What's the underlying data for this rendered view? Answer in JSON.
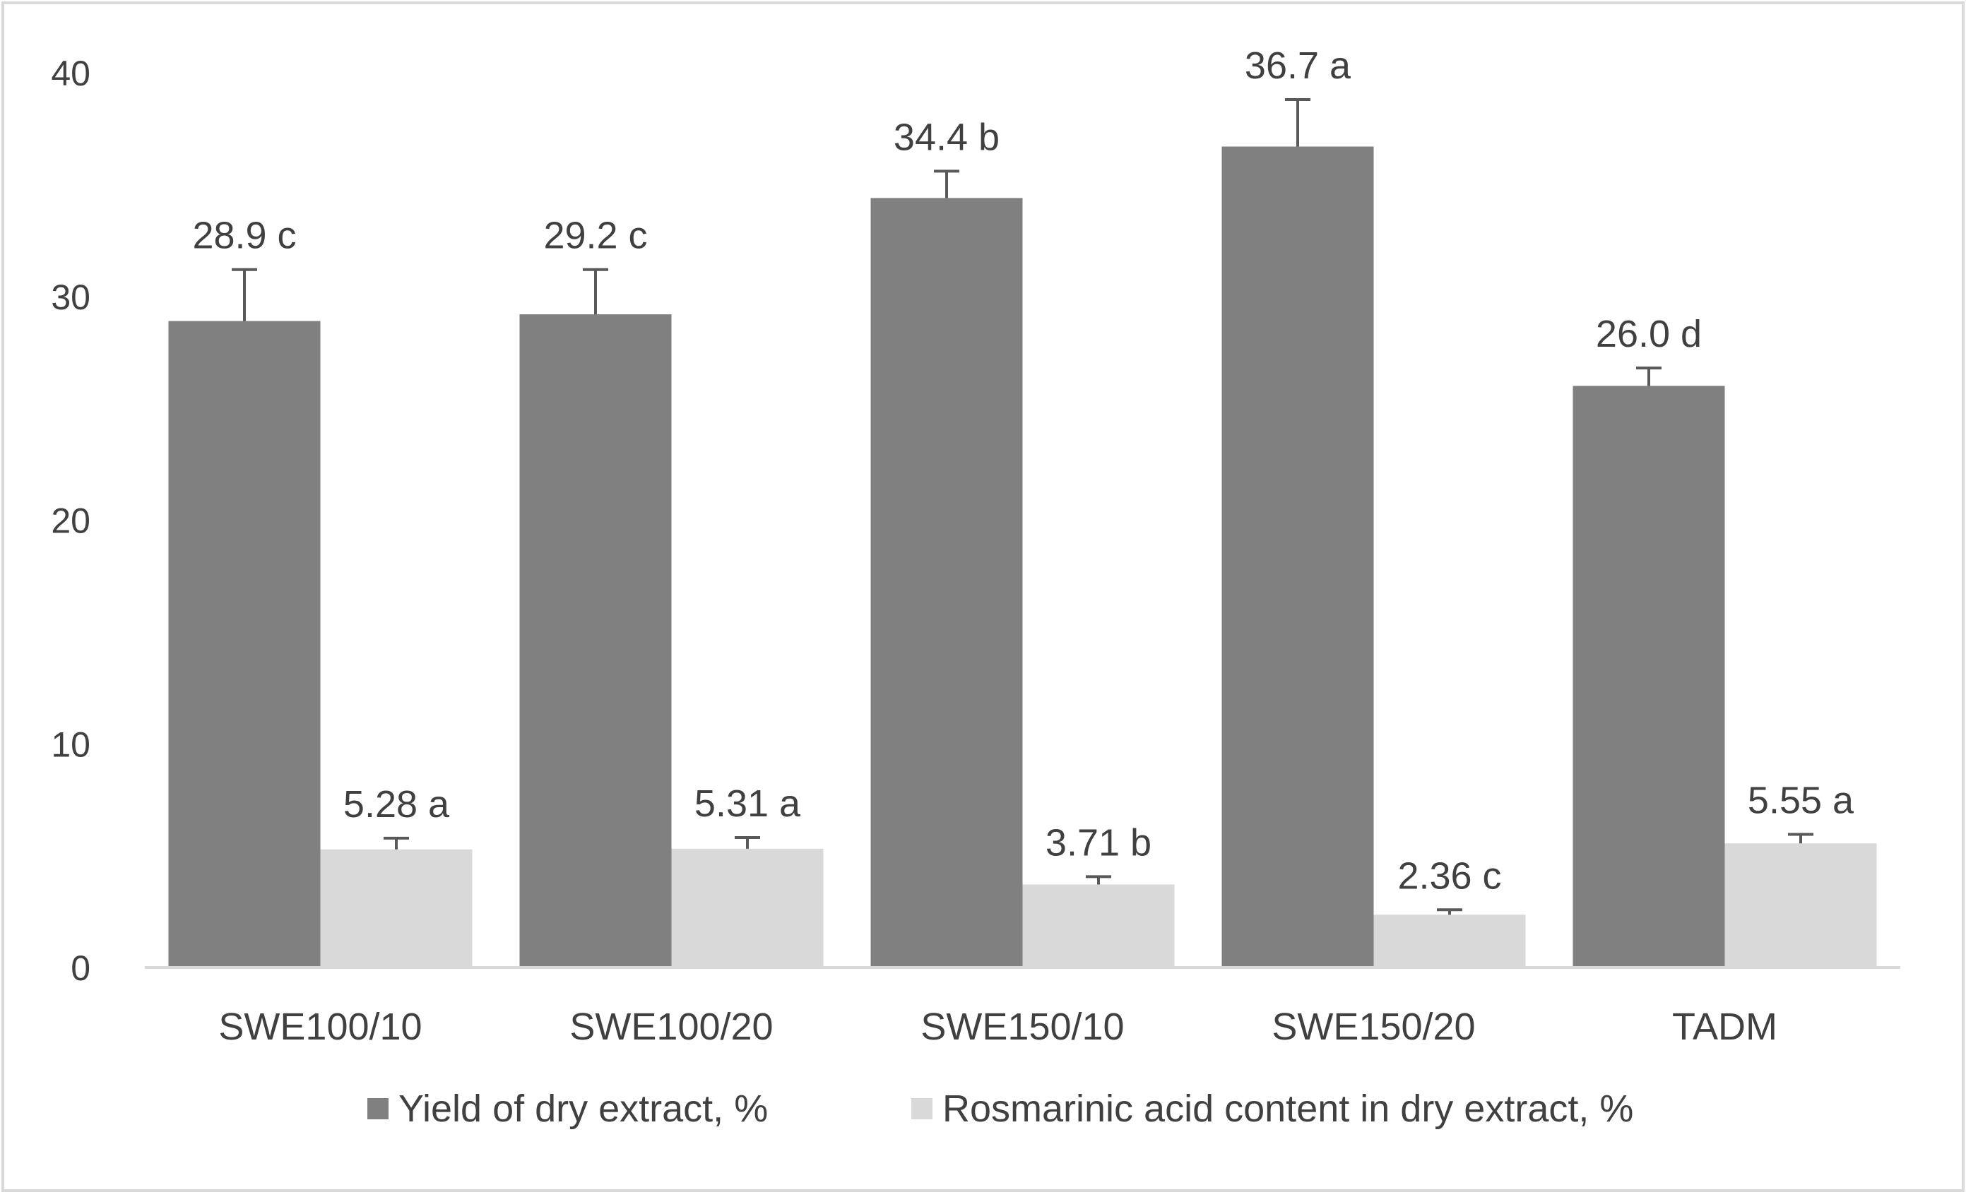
{
  "chart_data": {
    "type": "bar",
    "title": "",
    "xlabel": "",
    "ylabel": "",
    "categories": [
      "SWE100/10",
      "SWE100/20",
      "SWE150/10",
      "SWE150/20",
      "TADM"
    ],
    "ylim": [
      0,
      40
    ],
    "yticks": [
      0,
      10,
      20,
      30,
      40
    ],
    "grid": false,
    "legend_position": "bottom",
    "series": [
      {
        "name": "Yield of dry extract, %",
        "color": "#808080",
        "values": [
          28.9,
          29.2,
          34.4,
          36.7,
          26.0
        ],
        "errors": [
          2.3,
          2.0,
          1.2,
          2.1,
          0.8
        ],
        "labels": [
          "28.9 c",
          "29.2 c",
          "34.4 b",
          "36.7 a",
          "26.0 d"
        ]
      },
      {
        "name": "Rosmarinic acid content in dry extract, %",
        "color": "#d9d9d9",
        "values": [
          5.28,
          5.31,
          3.71,
          2.36,
          5.55
        ],
        "errors": [
          0.5,
          0.5,
          0.35,
          0.22,
          0.4
        ],
        "labels": [
          "5.28 a",
          "5.31 a",
          "3.71 b",
          "2.36 c",
          "5.55 a"
        ]
      }
    ]
  }
}
